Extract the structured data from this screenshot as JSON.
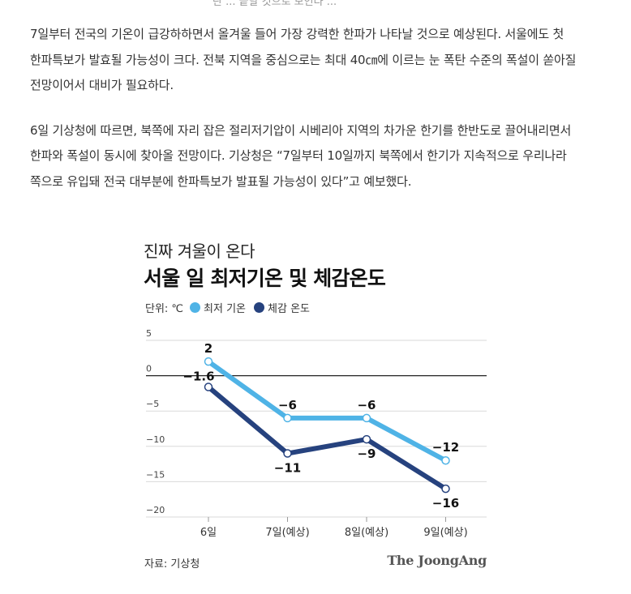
{
  "article": {
    "top_fragment": "란 ... 끝날 것으로 보인다 ...",
    "paragraph1": "7일부터 전국의 기온이 급강하하면서 올겨울 들어 가장 강력한 한파가 나타날 것으로 예상된다. 서울에도 첫 한파특보가 발효될 가능성이 크다. 전북 지역을 중심으로는 최대 40㎝에 이르는 눈 폭탄 수준의 폭설이 쏟아질 전망이어서 대비가 필요하다.",
    "paragraph2": "6일 기상청에 따르면, 북쪽에 자리 잡은 절리저기압이 시베리아 지역의 차가운 한기를 한반도로 끌어내리면서 한파와 폭설이 동시에 찾아올 전망이다. 기상청은 “7일부터 10일까지 북쪽에서 한기가 지속적으로 우리나라 쪽으로 유입돼 전국 대부분에 한파특보가 발표될 가능성이 있다”고 예보했다."
  },
  "figure": {
    "source": "자료: 기상청",
    "brand": "The JoongAng"
  },
  "colors": {
    "min_temp": "#4fb3e6",
    "feels_like": "#26427e",
    "grid": "#d9d9d9",
    "zero_line": "#222222"
  },
  "chart_data": {
    "type": "line",
    "subtitle": "진짜 겨울이 온다",
    "title": "서울 일 최저기온 및 체감온도",
    "unit_label": "단위: ℃",
    "categories": [
      "6일",
      "7일(예상)",
      "8일(예상)",
      "9일(예상)"
    ],
    "ylim": [
      -20,
      5
    ],
    "yticks": [
      5,
      0,
      -5,
      -10,
      -15,
      -20
    ],
    "ytick_labels": [
      "5",
      "0",
      "−5",
      "−10",
      "−15",
      "−20"
    ],
    "grid": true,
    "legend_position": "top-left",
    "series": [
      {
        "name": "최저 기온",
        "values": [
          2,
          -6,
          -6,
          -12
        ],
        "labels": [
          "2",
          "−6",
          "−6",
          "−12"
        ],
        "label_side": "above"
      },
      {
        "name": "체감 온도",
        "values": [
          -1.6,
          -11,
          -9,
          -16
        ],
        "labels": [
          "−1.6",
          "−11",
          "−9",
          "−16"
        ],
        "label_side": "below"
      }
    ]
  }
}
